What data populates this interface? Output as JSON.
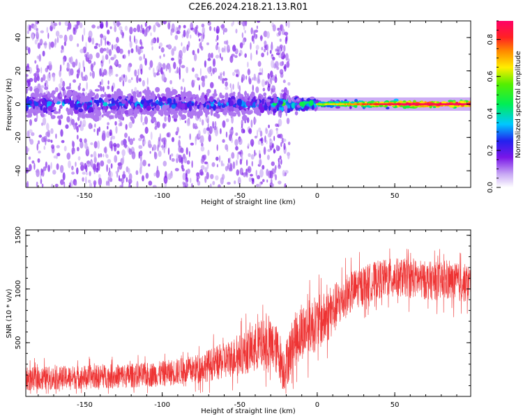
{
  "figure": {
    "title": "C2E6.2024.218.21.13.R01"
  },
  "colors": {
    "snr_line": "#ee3333",
    "frame": "#000000",
    "background": "#ffffff"
  },
  "chart_data": [
    {
      "type": "heatmap",
      "title": "C2E6.2024.218.21.13.R01",
      "xlabel": "Height of straight line (km)",
      "ylabel": "Frequency (Hz)",
      "xlim": [
        -188,
        99
      ],
      "ylim": [
        -50,
        50
      ],
      "xticks": [
        -150,
        -100,
        -50,
        0,
        50
      ],
      "yticks": [
        -40,
        -20,
        0,
        20,
        40
      ],
      "xtick_labels": [
        "-150",
        "-100",
        "-50",
        "0",
        "50"
      ],
      "ytick_labels": [
        "-40",
        "-20",
        "0",
        "20",
        "40"
      ],
      "colorbar": {
        "label": "Normalized spectral amplitude",
        "range": [
          0.0,
          0.9
        ],
        "ticks": [
          0.0,
          0.2,
          0.4,
          0.6,
          0.8
        ],
        "tick_labels": [
          "0.0",
          "0.2",
          "0.4",
          "0.6",
          "0.8"
        ],
        "colormap": "white-purple-blue-cyan-green-yellow-red-magenta"
      },
      "description_values": {
        "band_center_hz": 0,
        "band_halfwidth_hz_below_-30km": 8,
        "band_halfwidth_hz_above_0km": 2,
        "peak_amplitude_above_20km": 0.85,
        "amplitude_below_-50km": 0.2
      }
    },
    {
      "type": "line",
      "xlabel": "Height of straight line (km)",
      "ylabel": "SNR (10 * v/v)",
      "xlim": [
        -188,
        99
      ],
      "ylim": [
        0,
        1550
      ],
      "xticks": [
        -150,
        -100,
        -50,
        0,
        50
      ],
      "yticks": [
        500,
        1000,
        1500
      ],
      "xtick_labels": [
        "-150",
        "-100",
        "-50",
        "0",
        "50"
      ],
      "ytick_labels": [
        "500",
        "1000",
        "1500"
      ],
      "series": [
        {
          "name": "SNR",
          "x": [
            -188,
            -175,
            -160,
            -150,
            -140,
            -125,
            -110,
            -100,
            -90,
            -80,
            -70,
            -60,
            -55,
            -50,
            -45,
            -40,
            -35,
            -30,
            -25,
            -22,
            -20,
            -15,
            -10,
            -5,
            0,
            5,
            10,
            15,
            20,
            30,
            40,
            50,
            60,
            70,
            80,
            90,
            99
          ],
          "values": [
            160,
            170,
            175,
            180,
            185,
            190,
            200,
            210,
            230,
            250,
            290,
            330,
            360,
            390,
            420,
            460,
            480,
            470,
            420,
            260,
            300,
            520,
            600,
            650,
            680,
            720,
            800,
            880,
            960,
            1040,
            1090,
            1110,
            1100,
            1080,
            1070,
            1060,
            1050
          ],
          "spread": [
            110,
            110,
            110,
            110,
            110,
            115,
            115,
            120,
            125,
            130,
            150,
            170,
            180,
            190,
            210,
            230,
            240,
            240,
            230,
            220,
            230,
            250,
            260,
            260,
            260,
            250,
            240,
            220,
            200,
            180,
            180,
            180,
            180,
            180,
            180,
            180,
            180
          ]
        }
      ]
    }
  ]
}
